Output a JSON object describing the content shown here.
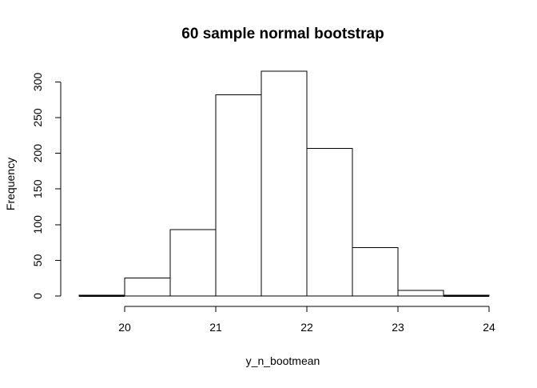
{
  "chart_data": {
    "type": "bar",
    "title": "60 sample normal bootstrap",
    "xlabel": "y_n_bootmean",
    "ylabel": "Frequency",
    "bins": [
      {
        "start": 19.5,
        "end": 20.0,
        "count": 1
      },
      {
        "start": 20.0,
        "end": 20.5,
        "count": 25
      },
      {
        "start": 20.5,
        "end": 21.0,
        "count": 93
      },
      {
        "start": 21.0,
        "end": 21.5,
        "count": 282
      },
      {
        "start": 21.5,
        "end": 22.0,
        "count": 315
      },
      {
        "start": 22.0,
        "end": 22.5,
        "count": 207
      },
      {
        "start": 22.5,
        "end": 23.0,
        "count": 68
      },
      {
        "start": 23.0,
        "end": 23.5,
        "count": 8
      },
      {
        "start": 23.5,
        "end": 24.0,
        "count": 1
      }
    ],
    "xlim": [
      19.5,
      24
    ],
    "ylim": [
      0,
      315
    ],
    "x_ticks": [
      20,
      21,
      22,
      23,
      24
    ],
    "x_tick_labels": [
      "20",
      "21",
      "22",
      "23",
      "24"
    ],
    "y_ticks": [
      0,
      50,
      100,
      150,
      200,
      250,
      300
    ],
    "y_tick_labels": [
      "0",
      "50",
      "100",
      "150",
      "200",
      "250",
      "300"
    ],
    "grid": false,
    "bar_fill": "#ffffff",
    "bar_stroke": "#000000"
  }
}
